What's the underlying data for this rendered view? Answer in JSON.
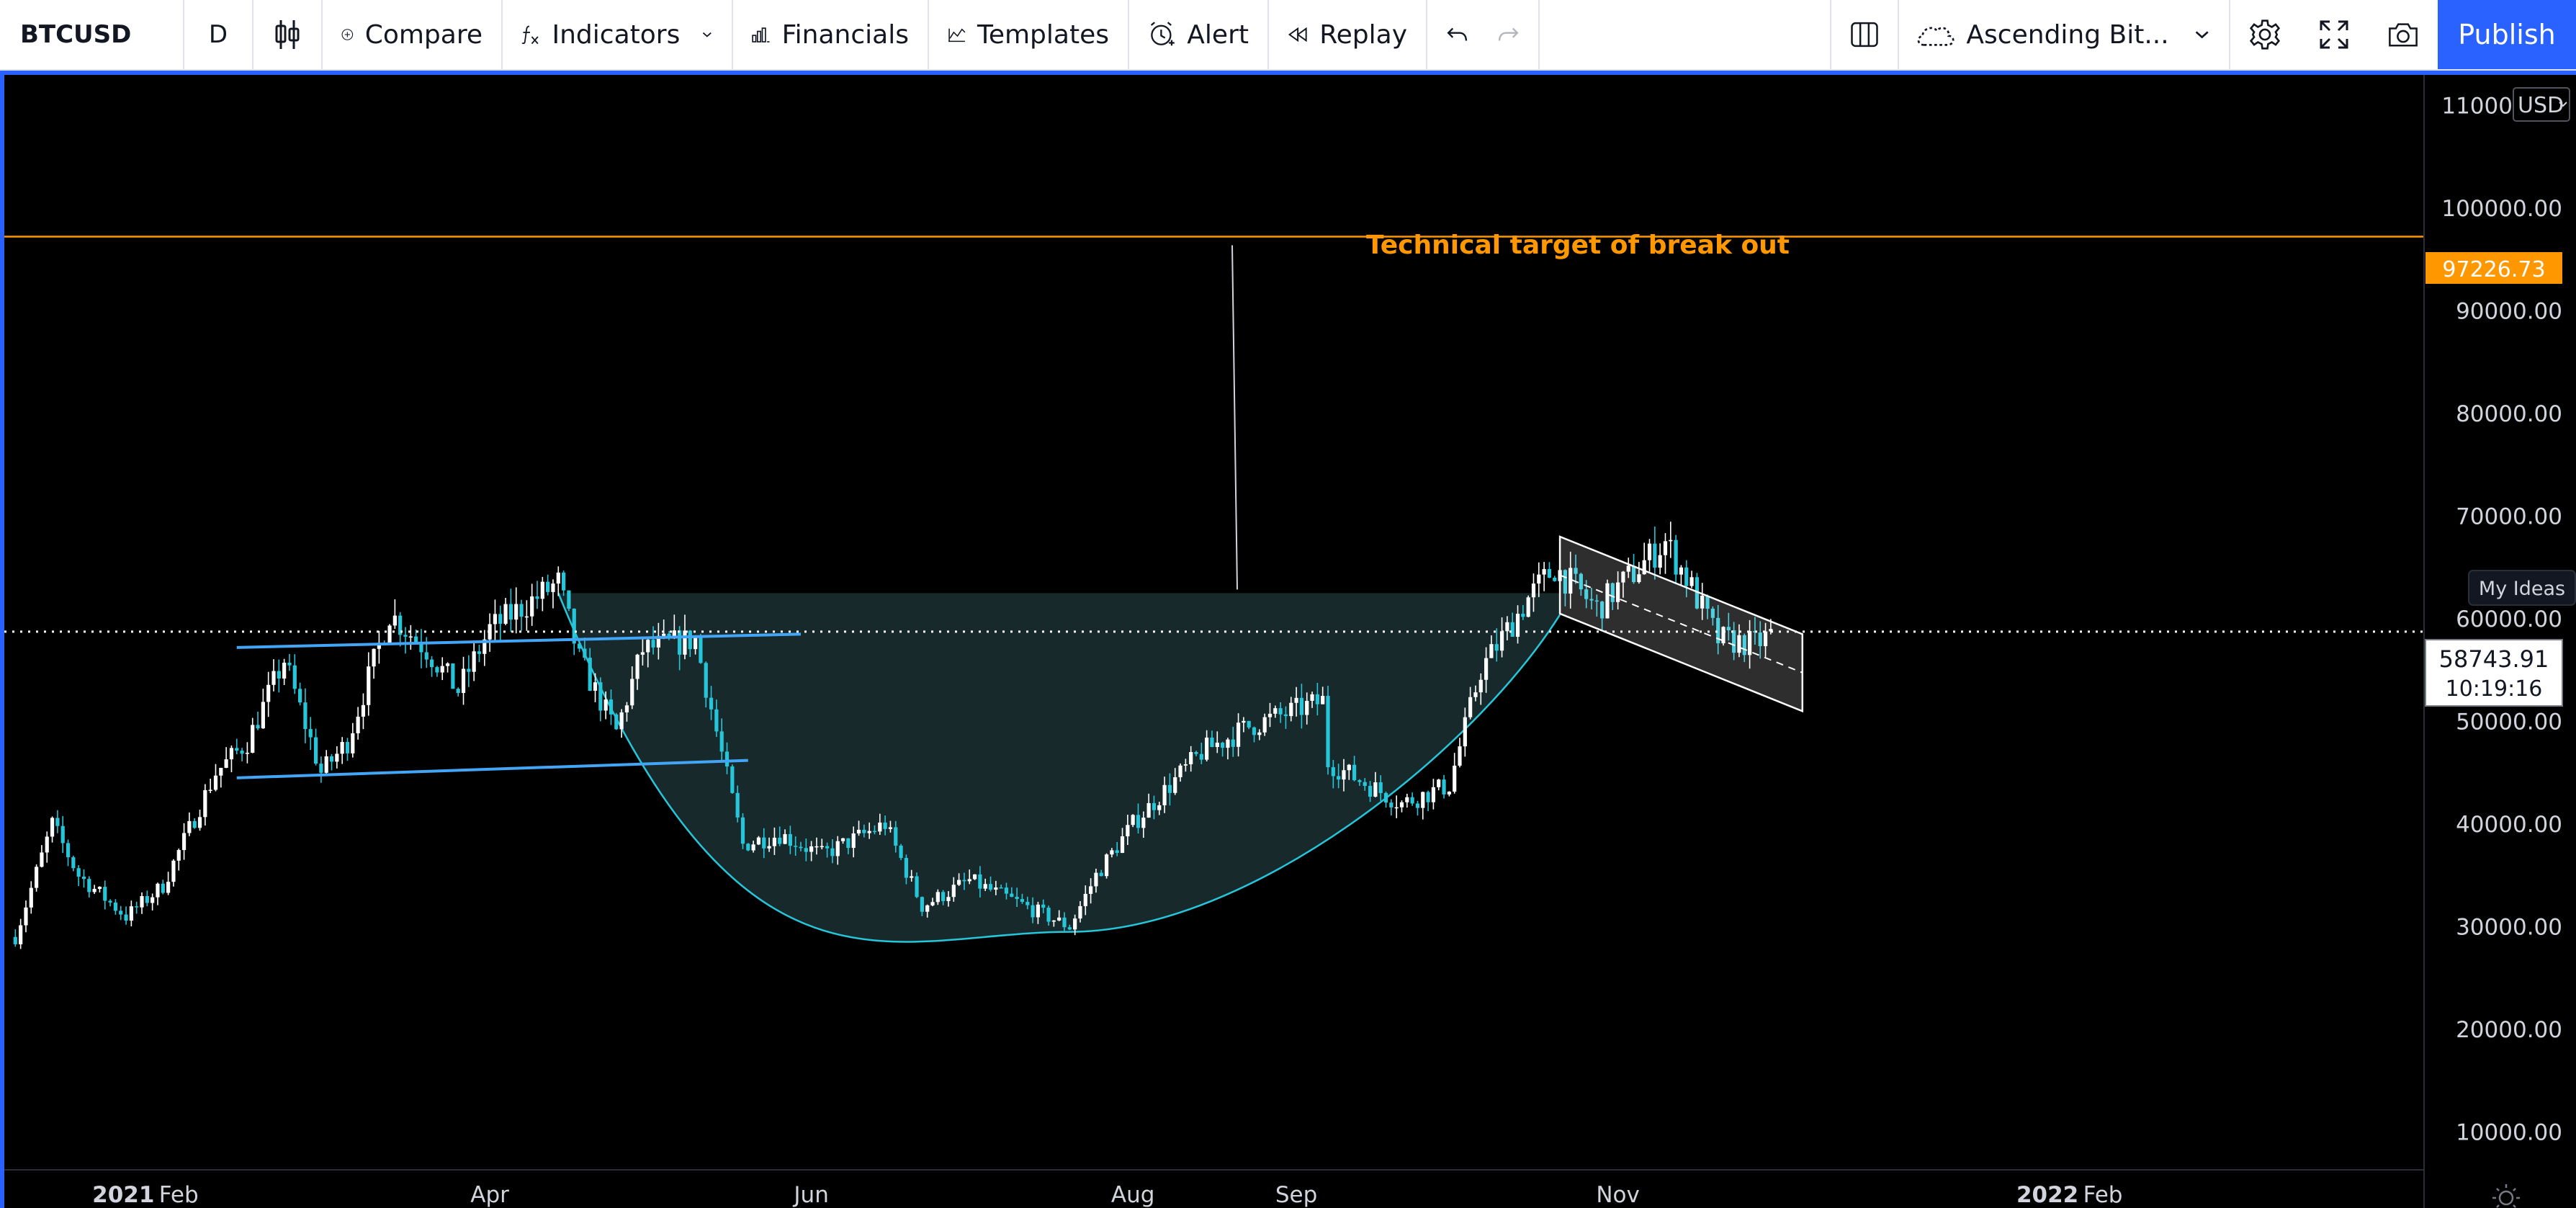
{
  "toolbar": {
    "symbol": "BTCUSD",
    "interval": "D",
    "compare_label": "Compare",
    "indicators_label": "Indicators",
    "financials_label": "Financials",
    "templates_label": "Templates",
    "alert_label": "Alert",
    "replay_label": "Replay",
    "layout_name": "Ascending Bit...",
    "publish_label": "Publish",
    "icons": [
      "candles-icon",
      "plus-circle-icon",
      "fx-icon",
      "chevron-down-icon",
      "bar-chart-icon",
      "templates-icon",
      "alarm-clock-icon",
      "rewind-icon",
      "undo-icon",
      "redo-icon",
      "columns-layout-icon",
      "cloud-icon",
      "gear-icon",
      "fullscreen-icon",
      "camera-icon"
    ]
  },
  "chart": {
    "currency": "USD",
    "annotation": "Technical target of break out",
    "target_price_label": "97226.73",
    "current_price_label": "58743.91",
    "countdown": "10:19:16",
    "my_ideas": "My Ideas",
    "colors": {
      "up": "#ffffff",
      "down": "#26c6da",
      "target_line": "#ff9800",
      "trendline": "#42a5f5",
      "cup_fill": "#17292b",
      "cup_curve": "#26c6da",
      "channel": "#ffffff"
    }
  },
  "chart_data": {
    "type": "candlestick",
    "symbol": "BTCUSD",
    "interval": "D",
    "y_ticks": [
      "110000.00",
      "100000.00",
      "90000.00",
      "80000.00",
      "70000.00",
      "60000.00",
      "50000.00",
      "40000.00",
      "30000.00",
      "20000.00",
      "10000.00"
    ],
    "x_ticks": [
      "2021",
      "Feb",
      "Apr",
      "Jun",
      "Aug",
      "Sep",
      "Nov",
      "2022",
      "Feb"
    ],
    "ylim": [
      10000,
      112000
    ],
    "price_path": [
      [
        "2021-01-01",
        29000
      ],
      [
        "2021-01-08",
        40000
      ],
      [
        "2021-01-13",
        35000
      ],
      [
        "2021-01-22",
        31000
      ],
      [
        "2021-01-29",
        34000
      ],
      [
        "2021-02-08",
        45000
      ],
      [
        "2021-02-14",
        48000
      ],
      [
        "2021-02-21",
        56000
      ],
      [
        "2021-02-28",
        45000
      ],
      [
        "2021-03-05",
        48000
      ],
      [
        "2021-03-13",
        60500
      ],
      [
        "2021-03-20",
        57000
      ],
      [
        "2021-03-26",
        53000
      ],
      [
        "2021-04-01",
        59000
      ],
      [
        "2021-04-14",
        63500
      ],
      [
        "2021-04-18",
        56000
      ],
      [
        "2021-04-25",
        49000
      ],
      [
        "2021-04-30",
        57000
      ],
      [
        "2021-05-10",
        58000
      ],
      [
        "2021-05-14",
        49000
      ],
      [
        "2021-05-19",
        38000
      ],
      [
        "2021-05-26",
        39000
      ],
      [
        "2021-06-03",
        37000
      ],
      [
        "2021-06-15",
        40000
      ],
      [
        "2021-06-22",
        32000
      ],
      [
        "2021-07-01",
        34500
      ],
      [
        "2021-07-20",
        30000
      ],
      [
        "2021-07-25",
        35000
      ],
      [
        "2021-08-01",
        40000
      ],
      [
        "2021-08-14",
        47000
      ],
      [
        "2021-08-23",
        49500
      ],
      [
        "2021-09-06",
        52000
      ],
      [
        "2021-09-07",
        46000
      ],
      [
        "2021-09-21",
        42000
      ],
      [
        "2021-09-30",
        43800
      ],
      [
        "2021-10-06",
        55000
      ],
      [
        "2021-10-15",
        62000
      ],
      [
        "2021-10-20",
        65000
      ],
      [
        "2021-10-28",
        61000
      ],
      [
        "2021-11-10",
        67500
      ],
      [
        "2021-11-14",
        64000
      ],
      [
        "2021-11-20",
        58000
      ],
      [
        "2021-11-27",
        57500
      ],
      [
        "2021-12-01",
        58744
      ]
    ],
    "overlays": {
      "target_price": 97226.73,
      "current_price": 58743.91,
      "cup_rim_price": 62500,
      "cup_bottom_price": 29500,
      "ascending_channel_upper": [
        [
          "2021-02-12",
          57200
        ],
        [
          "2021-05-30",
          58500
        ]
      ],
      "ascending_channel_lower": [
        [
          "2021-02-12",
          44500
        ],
        [
          "2021-05-20",
          46200
        ]
      ],
      "descending_channel_upper": [
        [
          "2021-10-21",
          68000
        ],
        [
          "2021-12-06",
          58500
        ]
      ],
      "descending_channel_lower": [
        [
          "2021-10-21",
          60500
        ],
        [
          "2021-12-06",
          51000
        ]
      ]
    }
  }
}
